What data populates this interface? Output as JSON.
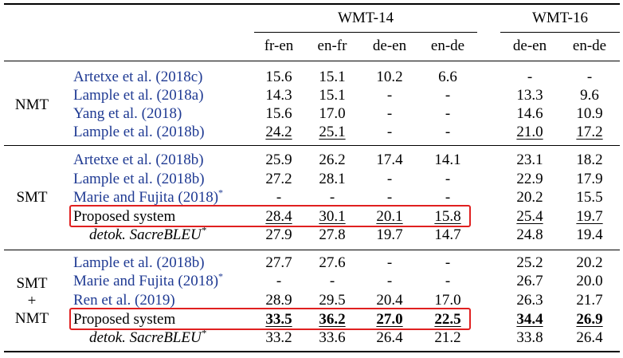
{
  "groups": {
    "wmt14": "WMT-14",
    "wmt16": "WMT-16"
  },
  "columns": [
    "fr-en",
    "en-fr",
    "de-en",
    "en-de",
    "de-en",
    "en-de"
  ],
  "sections": [
    {
      "label": [
        "NMT"
      ],
      "rows": [
        {
          "name": "Artetxe et al. (2018c)",
          "cite": true,
          "values": [
            "15.6",
            "15.1",
            "10.2",
            "6.6",
            "-",
            "-"
          ]
        },
        {
          "name": "Lample et al. (2018a)",
          "cite": true,
          "values": [
            "14.3",
            "15.1",
            "-",
            "-",
            "13.3",
            "9.6"
          ]
        },
        {
          "name": "Yang et al. (2018)",
          "cite": true,
          "values": [
            "15.6",
            "17.0",
            "-",
            "-",
            "14.6",
            "10.9"
          ]
        },
        {
          "name": "Lample et al. (2018b)",
          "cite": true,
          "values": [
            "24.2",
            "25.1",
            "-",
            "-",
            "21.0",
            "17.2"
          ]
        }
      ]
    },
    {
      "label": [
        "SMT"
      ],
      "rows": [
        {
          "name": "Artetxe et al. (2018b)",
          "cite": true,
          "values": [
            "25.9",
            "26.2",
            "17.4",
            "14.1",
            "23.1",
            "18.2"
          ]
        },
        {
          "name": "Lample et al. (2018b)",
          "cite": true,
          "values": [
            "27.2",
            "28.1",
            "-",
            "-",
            "22.9",
            "17.9"
          ]
        },
        {
          "name": "Marie and Fujita (2018)",
          "sup": "*",
          "cite": true,
          "values": [
            "-",
            "-",
            "-",
            "-",
            "20.2",
            "15.5"
          ]
        },
        {
          "name": "Proposed system",
          "cite": false,
          "values": [
            "28.4",
            "30.1",
            "20.1",
            "15.8",
            "25.4",
            "19.7"
          ]
        },
        {
          "name": "detok. SacreBLEU",
          "sup": "*",
          "cite": false,
          "values": [
            "27.9",
            "27.8",
            "19.7",
            "14.7",
            "24.8",
            "19.4"
          ]
        }
      ]
    },
    {
      "label": [
        "SMT",
        "+",
        "NMT"
      ],
      "rows": [
        {
          "name": "Lample et al. (2018b)",
          "cite": true,
          "values": [
            "27.7",
            "27.6",
            "-",
            "-",
            "25.2",
            "20.2"
          ]
        },
        {
          "name": "Marie and Fujita (2018)",
          "sup": "*",
          "cite": true,
          "values": [
            "-",
            "-",
            "-",
            "-",
            "26.7",
            "20.0"
          ]
        },
        {
          "name": "Ren et al. (2019)",
          "cite": true,
          "values": [
            "28.9",
            "29.5",
            "20.4",
            "17.0",
            "26.3",
            "21.7"
          ]
        },
        {
          "name": "Proposed system",
          "cite": false,
          "values": [
            "33.5",
            "36.2",
            "27.0",
            "22.5",
            "34.4",
            "26.9"
          ]
        },
        {
          "name": "detok. SacreBLEU",
          "sup": "*",
          "cite": false,
          "values": [
            "33.2",
            "33.6",
            "26.4",
            "21.2",
            "33.8",
            "26.4"
          ]
        }
      ]
    }
  ],
  "colors": {
    "citation": "#1f3a93",
    "highlight": "#e02020"
  }
}
